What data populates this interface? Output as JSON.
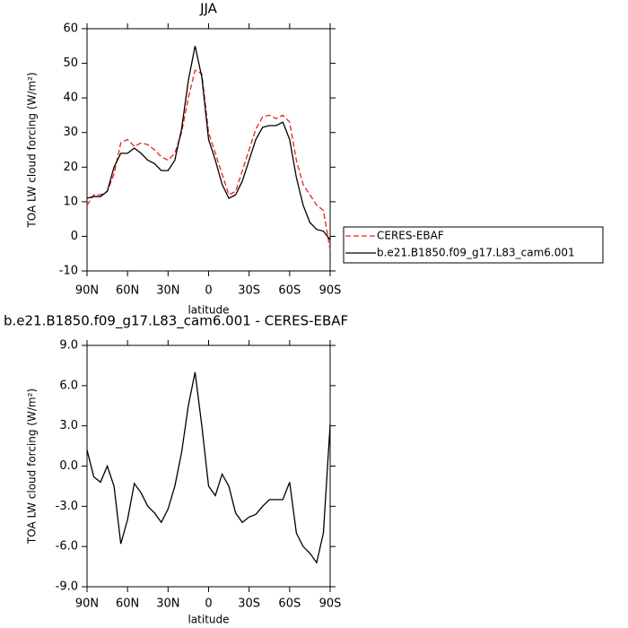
{
  "chart_data": [
    {
      "type": "line",
      "title": "JJA",
      "xlabel": "latitude",
      "ylabel": "TOA LW cloud forcing (W/m²)",
      "x": [
        90,
        85,
        80,
        75,
        70,
        65,
        60,
        55,
        50,
        45,
        40,
        35,
        30,
        25,
        20,
        15,
        10,
        5,
        0,
        -5,
        -10,
        -15,
        -20,
        -25,
        -30,
        -35,
        -40,
        -45,
        -50,
        -55,
        -60,
        -65,
        -70,
        -75,
        -80,
        -85,
        -90
      ],
      "xlim": [
        90,
        -90
      ],
      "xticks": [
        {
          "value": 90,
          "label": "90N"
        },
        {
          "value": 60,
          "label": "60N"
        },
        {
          "value": 30,
          "label": "30N"
        },
        0,
        {
          "value": -30,
          "label": "30S"
        },
        {
          "value": -60,
          "label": "60S"
        },
        {
          "value": -90,
          "label": "90S"
        }
      ],
      "ylim": [
        -10,
        60
      ],
      "yticks": [
        -10,
        0,
        10,
        20,
        30,
        40,
        50,
        60
      ],
      "legend": "right",
      "series": [
        {
          "name": "CERES-EBAF",
          "color": "#e8211e",
          "linestyle": "dashed",
          "values": [
            9,
            12,
            12,
            13,
            18,
            27,
            28,
            26,
            27,
            26.5,
            25,
            23,
            22,
            24,
            30,
            40,
            48,
            47,
            30,
            24,
            18,
            12,
            13,
            19,
            25,
            31,
            34.5,
            35,
            34,
            35,
            33,
            22,
            15,
            12,
            9,
            7.5,
            -4
          ]
        },
        {
          "name": "b.e21.B1850.f09_g17.L83_cam6.001",
          "color": "#000000",
          "linestyle": "solid",
          "values": [
            11,
            11.5,
            11.5,
            13,
            20,
            24,
            24,
            25.5,
            24,
            22,
            21,
            19,
            19,
            22,
            31,
            45,
            55,
            46,
            28,
            22,
            15,
            11,
            12,
            16,
            22,
            28,
            31.5,
            32,
            32,
            33,
            28,
            17,
            9,
            4,
            2,
            1.5,
            -1
          ]
        }
      ]
    },
    {
      "type": "line",
      "title": "b.e21.B1850.f09_g17.L83_cam6.001 - CERES-EBAF",
      "xlabel": "latitude",
      "ylabel": "TOA LW cloud forcing (W/m²)",
      "x": [
        90,
        85,
        80,
        75,
        70,
        65,
        60,
        55,
        50,
        45,
        40,
        35,
        30,
        25,
        20,
        15,
        10,
        5,
        0,
        -5,
        -10,
        -15,
        -20,
        -25,
        -30,
        -35,
        -40,
        -45,
        -50,
        -55,
        -60,
        -65,
        -70,
        -75,
        -80,
        -85,
        -90
      ],
      "xlim": [
        90,
        -90
      ],
      "xticks": [
        {
          "value": 90,
          "label": "90N"
        },
        {
          "value": 60,
          "label": "60N"
        },
        {
          "value": 30,
          "label": "30N"
        },
        0,
        {
          "value": -30,
          "label": "30S"
        },
        {
          "value": -60,
          "label": "60S"
        },
        {
          "value": -90,
          "label": "90S"
        }
      ],
      "ylim": [
        -9,
        9
      ],
      "yticks": [
        {
          "value": -9,
          "label": "-9.0"
        },
        {
          "value": -6,
          "label": "-6.0"
        },
        {
          "value": -3,
          "label": "-3.0"
        },
        {
          "value": 0,
          "label": "0.0"
        },
        {
          "value": 3,
          "label": "3.0"
        },
        {
          "value": 6,
          "label": "6.0"
        },
        {
          "value": 9,
          "label": "9.0"
        }
      ],
      "series": [
        {
          "color": "#000000",
          "linestyle": "solid",
          "values": [
            1.2,
            -0.8,
            -1.2,
            0,
            -1.5,
            -5.8,
            -4,
            -1.3,
            -2,
            -3,
            -3.5,
            -4.2,
            -3.2,
            -1.5,
            1,
            4.5,
            7,
            3,
            -1.5,
            -2.2,
            -0.6,
            -1.5,
            -3.5,
            -4.2,
            -3.8,
            -3.6,
            -3,
            -2.5,
            -2.5,
            -2.5,
            -1.2,
            -5,
            -6,
            -6.5,
            -7.2,
            -5,
            3.1
          ]
        }
      ]
    }
  ]
}
